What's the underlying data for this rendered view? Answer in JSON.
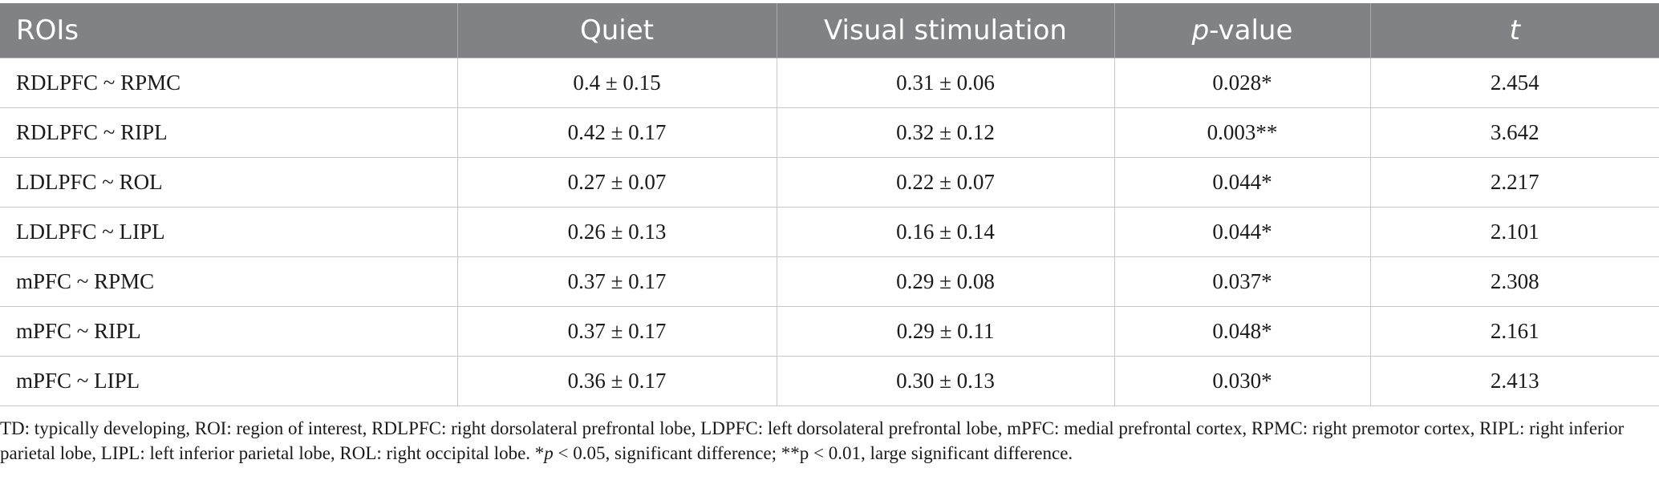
{
  "table": {
    "headers": {
      "rois": "ROIs",
      "quiet": "Quiet",
      "visual": "Visual stimulation",
      "p_italic": "p",
      "p_rest": "-value",
      "t": "t"
    },
    "rows": [
      {
        "roi": "RDLPFC ~ RPMC",
        "quiet": "0.4 ± 0.15",
        "visual": "0.31 ± 0.06",
        "p": "0.028*",
        "t": "2.454"
      },
      {
        "roi": "RDLPFC ~ RIPL",
        "quiet": "0.42 ± 0.17",
        "visual": "0.32 ± 0.12",
        "p": "0.003**",
        "t": "3.642"
      },
      {
        "roi": "LDLPFC ~ ROL",
        "quiet": "0.27 ± 0.07",
        "visual": "0.22 ± 0.07",
        "p": "0.044*",
        "t": "2.217"
      },
      {
        "roi": "LDLPFC ~ LIPL",
        "quiet": "0.26 ± 0.13",
        "visual": "0.16 ± 0.14",
        "p": "0.044*",
        "t": "2.101"
      },
      {
        "roi": "mPFC ~ RPMC",
        "quiet": "0.37 ± 0.17",
        "visual": "0.29 ± 0.08",
        "p": "0.037*",
        "t": "2.308"
      },
      {
        "roi": "mPFC ~ RIPL",
        "quiet": "0.37 ± 0.17",
        "visual": "0.29 ± 0.11",
        "p": "0.048*",
        "t": "2.161"
      },
      {
        "roi": "mPFC ~ LIPL",
        "quiet": "0.36 ± 0.17",
        "visual": "0.30 ± 0.13",
        "p": "0.030*",
        "t": "2.413"
      }
    ]
  },
  "footnote": {
    "part1": "TD: typically developing, ROI: region of interest, RDLPFC: right dorsolateral prefrontal lobe, LDPFC: left dorsolateral prefrontal lobe, mPFC: medial prefrontal cortex, RPMC: right premotor cortex, RIPL: right inferior parietal lobe, LIPL: left inferior parietal lobe, ROL: right occipital lobe. *",
    "p_italic": "p",
    "part2": " < 0.05, significant difference; **p < 0.01, large significant difference."
  }
}
